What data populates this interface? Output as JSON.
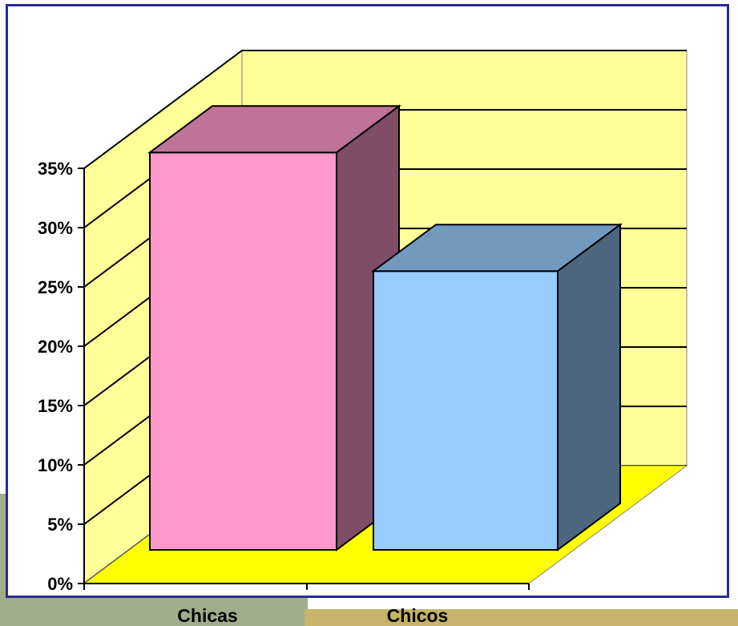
{
  "background": {
    "stripe_left_color": "#a0ad8a",
    "stripe_right_color": "#c7b36a"
  },
  "chart_data": {
    "type": "bar",
    "three_d": true,
    "categories": [
      "Chicas",
      "Chicos"
    ],
    "series": [
      {
        "values": [
          0.335,
          0.235
        ]
      }
    ],
    "bar_colors": [
      "#ff99cc",
      "#99ccff"
    ],
    "ylim": [
      0,
      0.35
    ],
    "y_ticks": [
      0,
      0.05,
      0.1,
      0.15,
      0.2,
      0.25,
      0.3,
      0.35
    ],
    "y_tick_labels": [
      "0%",
      "5%",
      "10%",
      "15%",
      "20%",
      "25%",
      "30%",
      "35%"
    ],
    "grid": true,
    "wall_color": "#ffff99",
    "floor_color": "#ffff00",
    "title": "",
    "xlabel": "",
    "ylabel": ""
  }
}
